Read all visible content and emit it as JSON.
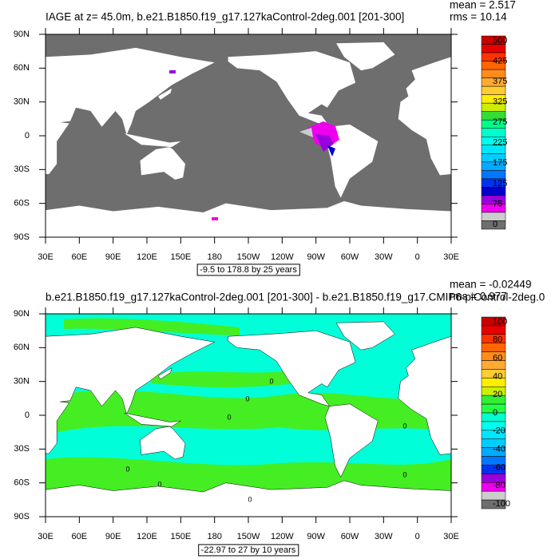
{
  "panels": [
    {
      "title": "IAGE at z=  45.0m, b.e21.B1850.f19_g17.127kaControl-2deg.001 [201-300]",
      "stats": [
        "mean = 2.517",
        "rms = 10.14"
      ],
      "lat_labels": [
        "90N",
        "60N",
        "30N",
        "0",
        "30S",
        "60S",
        "90S"
      ],
      "lon_labels": [
        "30E",
        "60E",
        "90E",
        "120E",
        "150E",
        "180",
        "150W",
        "120W",
        "90W",
        "60W",
        "30W",
        "0",
        "30E"
      ],
      "range_note": "-9.5 to 178.8 by 25 years",
      "colorbar": {
        "labels": [
          "500",
          "425",
          "375",
          "325",
          "275",
          "225",
          "175",
          "125",
          "75",
          "0"
        ],
        "colors": [
          "#c80000",
          "#e60000",
          "#ff3300",
          "#ff6600",
          "#ff8c1a",
          "#ffaa33",
          "#ffcc33",
          "#ffee00",
          "#ccee00",
          "#33dd33",
          "#00ff88",
          "#00ffd0",
          "#00ffee",
          "#00e6ff",
          "#00ccff",
          "#00aaff",
          "#0077ff",
          "#0033ee",
          "#0000cc",
          "#9900dd",
          "#ee00ee",
          "#cccccc",
          "#6e6e6e"
        ]
      }
    },
    {
      "title": "b.e21.B1850.f19_g17.127kaControl-2deg.001 [201-300] - b.e21.B1850.f19_g17.CMIP6-piControl-2deg.0",
      "stats": [
        "mean = -0.02449",
        "rms = 0.977"
      ],
      "lat_labels": [
        "90N",
        "60N",
        "30N",
        "0",
        "30S",
        "60S",
        "90S"
      ],
      "lon_labels": [
        "30E",
        "60E",
        "90E",
        "120E",
        "150E",
        "180",
        "150W",
        "120W",
        "90W",
        "60W",
        "30W",
        "0",
        "30E"
      ],
      "range_note": "-22.97 to 27 by 10 years",
      "contour_label": "0",
      "colorbar": {
        "labels": [
          "100",
          "80",
          "60",
          "40",
          "20",
          "0",
          "-20",
          "-40",
          "-60",
          "-80",
          "-100"
        ],
        "colors": [
          "#c80000",
          "#e60000",
          "#ff3300",
          "#ff6600",
          "#ff8c1a",
          "#ffaa33",
          "#ffcc33",
          "#ffee00",
          "#ccee00",
          "#33ee33",
          "#22ff44",
          "#00ffd0",
          "#00ffee",
          "#00e6ff",
          "#00ccff",
          "#00aaff",
          "#0077ff",
          "#0033ee",
          "#9900dd",
          "#ee00ee",
          "#cccccc",
          "#6e6e6e"
        ]
      }
    }
  ]
}
